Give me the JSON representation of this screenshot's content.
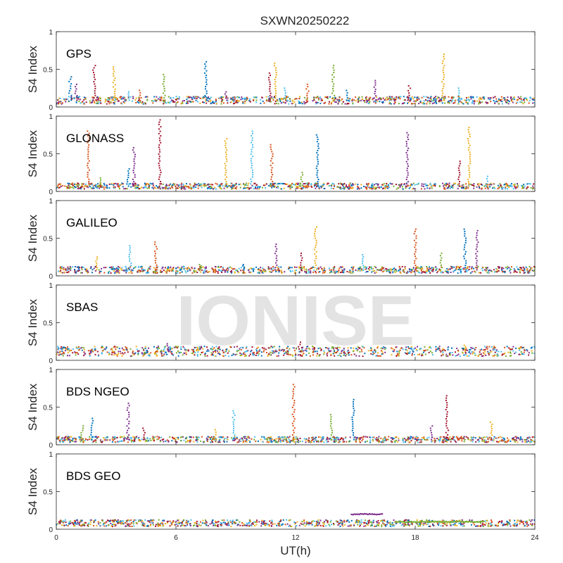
{
  "figure": {
    "title": "SXWN20250222",
    "xlabel": "UT(h)",
    "watermark": "IONISE"
  },
  "colors": {
    "axes": "#262626",
    "palette": [
      "#0072BD",
      "#D95319",
      "#EDB120",
      "#7E2F8E",
      "#77AC30",
      "#4DBEEE",
      "#A2142F"
    ],
    "watermark": "#d9d9d9"
  },
  "chart_data": [
    {
      "type": "scatter",
      "panel_label": "GPS",
      "ylabel": "S4 Index",
      "xlim": [
        0,
        24
      ],
      "ylim": [
        0,
        1
      ],
      "xticks": [
        0,
        6,
        12,
        18,
        24
      ],
      "yticks": [
        0,
        0.5,
        1
      ],
      "show_xticklabels": false,
      "baseline": 0.09,
      "peaks": [
        {
          "x": 0.7,
          "y": 0.4
        },
        {
          "x": 1.0,
          "y": 0.3
        },
        {
          "x": 1.9,
          "y": 0.55
        },
        {
          "x": 2.9,
          "y": 0.53
        },
        {
          "x": 3.6,
          "y": 0.2
        },
        {
          "x": 4.2,
          "y": 0.22
        },
        {
          "x": 5.4,
          "y": 0.43
        },
        {
          "x": 7.5,
          "y": 0.6
        },
        {
          "x": 8.5,
          "y": 0.2
        },
        {
          "x": 10.7,
          "y": 0.45
        },
        {
          "x": 11.0,
          "y": 0.58
        },
        {
          "x": 11.5,
          "y": 0.25
        },
        {
          "x": 12.6,
          "y": 0.3
        },
        {
          "x": 13.9,
          "y": 0.55
        },
        {
          "x": 14.6,
          "y": 0.22
        },
        {
          "x": 16.0,
          "y": 0.35
        },
        {
          "x": 17.7,
          "y": 0.28
        },
        {
          "x": 19.4,
          "y": 0.7
        },
        {
          "x": 20.2,
          "y": 0.25
        }
      ]
    },
    {
      "type": "scatter",
      "panel_label": "GLONASS",
      "ylabel": "S4 Index",
      "xlim": [
        0,
        24
      ],
      "ylim": [
        0,
        1
      ],
      "xticks": [
        0,
        6,
        12,
        18,
        24
      ],
      "yticks": [
        0,
        0.5,
        1
      ],
      "show_xticklabels": false,
      "baseline": 0.07,
      "peaks": [
        {
          "x": 1.6,
          "y": 0.8
        },
        {
          "x": 2.2,
          "y": 0.18
        },
        {
          "x": 3.6,
          "y": 0.3
        },
        {
          "x": 3.9,
          "y": 0.58
        },
        {
          "x": 5.2,
          "y": 0.95
        },
        {
          "x": 8.5,
          "y": 0.7
        },
        {
          "x": 9.8,
          "y": 0.8
        },
        {
          "x": 10.8,
          "y": 0.62
        },
        {
          "x": 12.3,
          "y": 0.25
        },
        {
          "x": 13.1,
          "y": 0.75
        },
        {
          "x": 17.6,
          "y": 0.78
        },
        {
          "x": 20.2,
          "y": 0.4
        },
        {
          "x": 20.7,
          "y": 0.85
        },
        {
          "x": 21.6,
          "y": 0.2
        }
      ]
    },
    {
      "type": "scatter",
      "panel_label": "GALILEO",
      "ylabel": "S4 Index",
      "xlim": [
        0,
        24
      ],
      "ylim": [
        0,
        1
      ],
      "xticks": [
        0,
        6,
        12,
        18,
        24
      ],
      "yticks": [
        0,
        0.5,
        1
      ],
      "show_xticklabels": false,
      "baseline": 0.08,
      "peaks": [
        {
          "x": 2.0,
          "y": 0.25
        },
        {
          "x": 3.7,
          "y": 0.4
        },
        {
          "x": 5.0,
          "y": 0.45
        },
        {
          "x": 7.2,
          "y": 0.15
        },
        {
          "x": 9.4,
          "y": 0.15
        },
        {
          "x": 11.0,
          "y": 0.42
        },
        {
          "x": 12.3,
          "y": 0.3
        },
        {
          "x": 13.0,
          "y": 0.65
        },
        {
          "x": 15.4,
          "y": 0.28
        },
        {
          "x": 18.0,
          "y": 0.62
        },
        {
          "x": 19.3,
          "y": 0.3
        },
        {
          "x": 20.5,
          "y": 0.62
        },
        {
          "x": 21.1,
          "y": 0.6
        }
      ]
    },
    {
      "type": "scatter",
      "panel_label": "SBAS",
      "ylabel": "S4 Index",
      "xlim": [
        0,
        24
      ],
      "ylim": [
        0,
        1
      ],
      "xticks": [
        0,
        6,
        12,
        18,
        24
      ],
      "yticks": [
        0,
        0.5,
        1
      ],
      "show_xticklabels": false,
      "baseline": 0.12,
      "peaks": [
        {
          "x": 5.6,
          "y": 0.22
        },
        {
          "x": 12.2,
          "y": 0.24
        },
        {
          "x": 20.5,
          "y": 0.2
        }
      ]
    },
    {
      "type": "scatter",
      "panel_label": "BDS NGEO",
      "ylabel": "S4 Index",
      "xlim": [
        0,
        24
      ],
      "ylim": [
        0,
        1
      ],
      "xticks": [
        0,
        6,
        12,
        18,
        24
      ],
      "yticks": [
        0,
        0.5,
        1
      ],
      "show_xticklabels": false,
      "baseline": 0.07,
      "peaks": [
        {
          "x": 1.3,
          "y": 0.25
        },
        {
          "x": 1.8,
          "y": 0.35
        },
        {
          "x": 3.6,
          "y": 0.55
        },
        {
          "x": 4.4,
          "y": 0.22
        },
        {
          "x": 8.0,
          "y": 0.2
        },
        {
          "x": 8.9,
          "y": 0.45
        },
        {
          "x": 11.9,
          "y": 0.8
        },
        {
          "x": 13.8,
          "y": 0.4
        },
        {
          "x": 14.9,
          "y": 0.6
        },
        {
          "x": 18.8,
          "y": 0.25
        },
        {
          "x": 19.6,
          "y": 0.65
        },
        {
          "x": 21.8,
          "y": 0.3
        }
      ]
    },
    {
      "type": "scatter",
      "panel_label": "BDS GEO",
      "ylabel": "S4 Index",
      "xlim": [
        0,
        24
      ],
      "ylim": [
        0,
        1
      ],
      "xticks": [
        0,
        6,
        12,
        18,
        24
      ],
      "yticks": [
        0,
        0.5,
        1
      ],
      "show_xticklabels": true,
      "baseline": 0.08,
      "peaks": [],
      "tracks": [
        {
          "x0": 14.8,
          "x1": 16.4,
          "y0": 0.2,
          "y1": 0.2,
          "color_index": 3
        },
        {
          "x0": 17.0,
          "x1": 21.5,
          "y0": 0.1,
          "y1": 0.1,
          "color_index": 4
        }
      ]
    }
  ]
}
